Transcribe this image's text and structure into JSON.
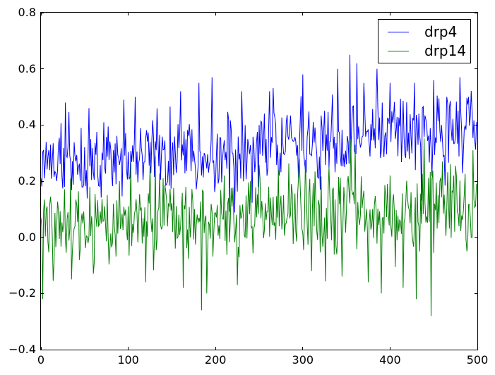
{
  "figure": {
    "background": "#ffffff",
    "axis_color": "#000000",
    "tick_direction": "in"
  },
  "chart_data": {
    "type": "line",
    "title": "",
    "xlabel": "",
    "ylabel": "",
    "xlim": [
      0,
      500
    ],
    "ylim": [
      -0.4,
      0.8
    ],
    "grid": false,
    "xticks": {
      "values": [
        0,
        100,
        200,
        300,
        400,
        500
      ],
      "labels": [
        "0",
        "100",
        "200",
        "300",
        "400",
        "500"
      ]
    },
    "yticks": {
      "values": [
        0.8,
        0.6,
        0.4,
        0.2,
        0.0,
        -0.2,
        -0.4
      ],
      "labels": [
        "0.8",
        "0.6",
        "0.4",
        "0.2",
        "0.0",
        "−0.2",
        "−0.4"
      ]
    },
    "legend": {
      "position": "upper right",
      "border_color": "#000000",
      "background": "#ffffff"
    },
    "series": [
      {
        "name": "drp4",
        "color": "#0000ff",
        "n_points": 500,
        "x_start": 0,
        "x_step": 1,
        "baseline_start": 0.26,
        "baseline_end": 0.385,
        "noise_amplitude": 0.16,
        "spike_probability": 0.15,
        "spike_amplitude": 0.12,
        "seed": 1234,
        "stats": {
          "approx_mean_start": 0.26,
          "approx_mean_end": 0.39,
          "observed_min": 0.07,
          "observed_max": 0.65
        },
        "spikes": [
          [
            0,
            0.21
          ],
          [
            28,
            0.48
          ],
          [
            55,
            0.46
          ],
          [
            95,
            0.49
          ],
          [
            108,
            0.5
          ],
          [
            160,
            0.52
          ],
          [
            181,
            0.55
          ],
          [
            196,
            0.57
          ],
          [
            230,
            0.52
          ],
          [
            262,
            0.52
          ],
          [
            300,
            0.58
          ],
          [
            320,
            0.17
          ],
          [
            340,
            0.6
          ],
          [
            354,
            0.65
          ],
          [
            362,
            0.62
          ],
          [
            370,
            0.55
          ],
          [
            385,
            0.6
          ],
          [
            400,
            0.55
          ],
          [
            428,
            0.55
          ],
          [
            450,
            0.56
          ],
          [
            465,
            0.5
          ],
          [
            480,
            0.57
          ],
          [
            490,
            0.5
          ],
          [
            499,
            0.41
          ]
        ]
      },
      {
        "name": "drp14",
        "color": "#008000",
        "n_points": 500,
        "x_start": 0,
        "x_step": 1,
        "baseline_start": 0.04,
        "baseline_end": 0.11,
        "noise_amplitude": 0.16,
        "spike_probability": 0.18,
        "spike_amplitude": 0.13,
        "seed": 98765,
        "stats": {
          "approx_mean_start": 0.04,
          "approx_mean_end": 0.11,
          "observed_min": -0.28,
          "observed_max": 0.35
        },
        "spikes": [
          [
            0,
            0.07
          ],
          [
            2,
            -0.22
          ],
          [
            35,
            -0.15
          ],
          [
            60,
            -0.13
          ],
          [
            90,
            0.2
          ],
          [
            120,
            -0.16
          ],
          [
            140,
            0.21
          ],
          [
            163,
            -0.18
          ],
          [
            184,
            -0.26
          ],
          [
            190,
            -0.2
          ],
          [
            210,
            0.22
          ],
          [
            225,
            -0.17
          ],
          [
            240,
            0.2
          ],
          [
            272,
            0.24
          ],
          [
            296,
            0.28
          ],
          [
            310,
            -0.12
          ],
          [
            330,
            0.25
          ],
          [
            345,
            -0.14
          ],
          [
            355,
            0.35
          ],
          [
            360,
            0.33
          ],
          [
            375,
            -0.16
          ],
          [
            390,
            -0.2
          ],
          [
            400,
            0.22
          ],
          [
            415,
            -0.18
          ],
          [
            430,
            -0.22
          ],
          [
            447,
            -0.28
          ],
          [
            460,
            0.27
          ],
          [
            469,
            0.26
          ],
          [
            476,
            0.22
          ],
          [
            488,
            -0.05
          ],
          [
            499,
            0.19
          ]
        ]
      }
    ]
  }
}
